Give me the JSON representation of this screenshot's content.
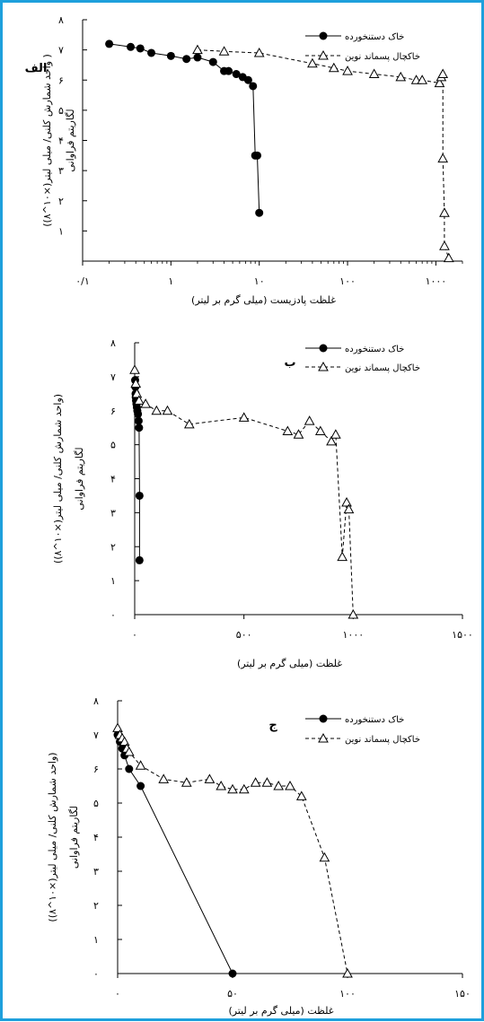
{
  "legend": {
    "series_a": "خاک دستنخورده",
    "series_b": "خاکچال پسماند نوین"
  },
  "chart_data": [
    {
      "type": "scatter",
      "panel_label": "الف",
      "x_scale": "log",
      "xlim": [
        0.1,
        2000
      ],
      "ylim": [
        0,
        8
      ],
      "x_ticks": [
        0.1,
        1,
        10,
        100,
        1000
      ],
      "x_tick_labels": [
        "۰/۱",
        "۱",
        "۱۰",
        "۱۰۰",
        "۱۰۰۰"
      ],
      "y_ticks": [
        1,
        2,
        3,
        4,
        5,
        6,
        7,
        8
      ],
      "y_tick_labels": [
        "۱",
        "۲",
        "۳",
        "۴",
        "۵",
        "۶",
        "۷",
        "۸"
      ],
      "xlabel": "غلظت پادزیست (میلی گرم بر لیتر)",
      "ylabel": "لگاریتم فراوانی",
      "ylabel2": "( واحد شمارش کلنی/ میلی لیتر(×۱۰^۸))",
      "series": [
        {
          "name": "خاک دستنخورده",
          "marker": "circle",
          "line": "solid",
          "x": [
            0.2,
            0.35,
            0.45,
            0.6,
            1,
            1.5,
            2,
            3,
            4,
            4.5,
            5.5,
            6.5,
            7.5,
            8.5,
            9,
            9.5,
            10
          ],
          "y": [
            7.2,
            7.1,
            7.05,
            6.9,
            6.8,
            6.7,
            6.75,
            6.6,
            6.3,
            6.3,
            6.2,
            6.1,
            6.0,
            5.8,
            3.5,
            3.5,
            1.6
          ]
        },
        {
          "name": "خاکچال پسماند نوین",
          "marker": "triangle",
          "line": "dashed",
          "x": [
            2,
            4,
            10,
            40,
            70,
            100,
            200,
            400,
            600,
            700,
            1100,
            1150,
            1200,
            1200,
            1250,
            1250,
            1400
          ],
          "y": [
            7.0,
            6.95,
            6.9,
            6.55,
            6.4,
            6.3,
            6.2,
            6.1,
            6.0,
            6.0,
            5.9,
            6.1,
            6.2,
            3.4,
            1.6,
            0.5,
            0.1
          ]
        }
      ]
    },
    {
      "type": "scatter",
      "panel_label": "ب",
      "x_scale": "linear",
      "xlim": [
        0,
        1500
      ],
      "ylim": [
        0,
        8
      ],
      "x_ticks": [
        0,
        500,
        1000,
        1500
      ],
      "x_tick_labels": [
        "۰",
        "۵۰۰",
        "۱۰۰۰",
        "۱۵۰۰"
      ],
      "y_ticks": [
        0,
        1,
        2,
        3,
        4,
        5,
        6,
        7,
        8
      ],
      "y_tick_labels": [
        "۰",
        "۱",
        "۲",
        "۳",
        "۴",
        "۵",
        "۶",
        "۷",
        "۸"
      ],
      "xlabel": "غلظت (میلی گرم بر لیتر)",
      "ylabel": "لگاریتم فراوانی",
      "ylabel2": "(واحد شمارش کلنی/ میلی لیتر(×۱۰^۸))",
      "series": [
        {
          "name": "خاک دستنخورده",
          "marker": "circle",
          "line": "solid",
          "x": [
            2,
            3,
            4,
            5,
            6,
            8,
            10,
            12,
            15,
            18,
            20,
            22,
            22
          ],
          "y": [
            6.9,
            6.7,
            6.5,
            6.4,
            6.3,
            6.2,
            6.1,
            6.0,
            5.9,
            5.7,
            5.5,
            3.5,
            1.6
          ]
        },
        {
          "name": "خاکچال پسماند نوین",
          "marker": "triangle",
          "line": "dashed",
          "x": [
            0,
            5,
            10,
            20,
            50,
            100,
            150,
            250,
            500,
            700,
            750,
            800,
            850,
            900,
            920,
            950,
            970,
            980,
            1000
          ],
          "y": [
            7.2,
            6.8,
            6.5,
            6.3,
            6.2,
            6.0,
            6.0,
            5.6,
            5.8,
            5.4,
            5.3,
            5.7,
            5.4,
            5.1,
            5.3,
            1.7,
            3.3,
            3.1,
            0.0
          ]
        }
      ]
    },
    {
      "type": "scatter",
      "panel_label": "ج",
      "x_scale": "linear",
      "xlim": [
        0,
        150
      ],
      "ylim": [
        0,
        8
      ],
      "x_ticks": [
        0,
        50,
        100,
        150
      ],
      "x_tick_labels": [
        "۰",
        "۵۰",
        "۱۰۰",
        "۱۵۰"
      ],
      "y_ticks": [
        0,
        1,
        2,
        3,
        4,
        5,
        6,
        7,
        8
      ],
      "y_tick_labels": [
        "۰",
        "۱",
        "۲",
        "۳",
        "۴",
        "۵",
        "۶",
        "۷",
        "۸"
      ],
      "xlabel": "غلظت (میلی گرم بر لیتر)",
      "ylabel": "لگاریتم فراوانی",
      "ylabel2": "(واحد شمارش کلنی/ میلی لیتر(×۱۰^۸))",
      "series": [
        {
          "name": "خاک دستنخورده",
          "marker": "circle",
          "line": "solid",
          "x": [
            0,
            1,
            2,
            3,
            5,
            10,
            50
          ],
          "y": [
            7.0,
            6.8,
            6.6,
            6.4,
            6.0,
            5.5,
            0.0
          ]
        },
        {
          "name": "خاکچال پسماند نوین",
          "marker": "triangle",
          "line": "dashed",
          "x": [
            0,
            1,
            2,
            3,
            4,
            5,
            10,
            20,
            30,
            40,
            45,
            50,
            55,
            60,
            65,
            70,
            75,
            80,
            90,
            100
          ],
          "y": [
            7.2,
            7.0,
            6.9,
            6.8,
            6.6,
            6.5,
            6.1,
            5.7,
            5.6,
            5.7,
            5.5,
            5.4,
            5.4,
            5.6,
            5.6,
            5.5,
            5.5,
            5.2,
            3.4,
            0.0
          ]
        }
      ]
    }
  ]
}
